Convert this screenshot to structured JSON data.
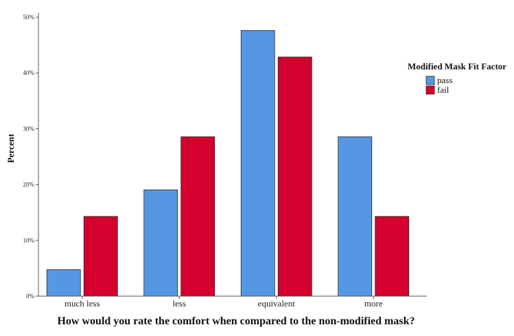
{
  "chart_data": {
    "type": "bar",
    "title": "",
    "xlabel": "How would you rate the comfort when compared to the non-modified mask?",
    "ylabel": "Percent",
    "categories": [
      "much less",
      "less",
      "equivalent",
      "more"
    ],
    "ylim": [
      0,
      50
    ],
    "yticks": [
      "0%",
      "10%",
      "20%",
      "30%",
      "40%",
      "50%"
    ],
    "ytick_values": [
      0,
      10,
      20,
      30,
      40,
      50
    ],
    "grid": false,
    "legend_title": "Modified Mask Fit Factor",
    "legend_position": "right",
    "series": [
      {
        "name": "pass",
        "color": "#5697e3",
        "values": [
          4.76,
          19.05,
          47.62,
          28.57
        ]
      },
      {
        "name": "fail",
        "color": "#d4002e",
        "values": [
          14.29,
          28.57,
          42.86,
          14.29
        ]
      }
    ]
  }
}
